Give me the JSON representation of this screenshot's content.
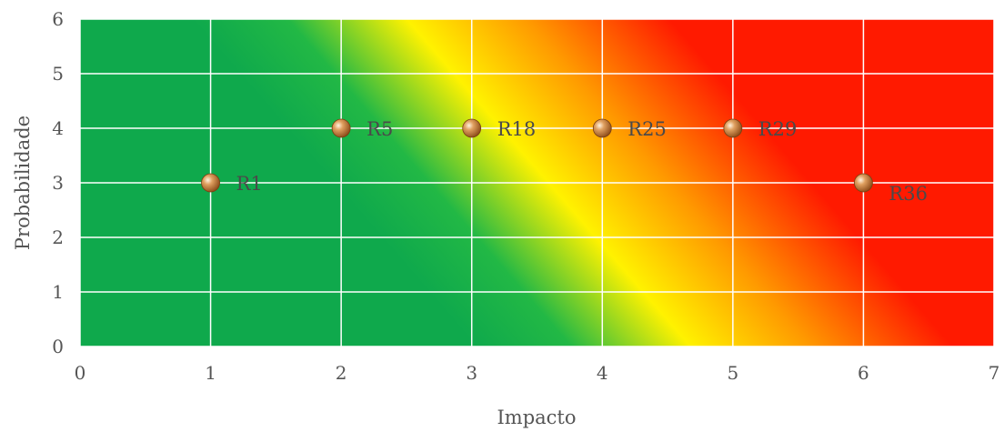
{
  "chart_data": {
    "type": "scatter",
    "xlabel": "Impacto",
    "ylabel": "Probabilidade",
    "xlim": [
      0,
      7
    ],
    "ylim": [
      0,
      6
    ],
    "x_ticks": [
      "0",
      "1",
      "2",
      "3",
      "4",
      "5",
      "6",
      "7"
    ],
    "y_ticks": [
      "0",
      "1",
      "2",
      "3",
      "4",
      "5",
      "6"
    ],
    "grid": true,
    "background": "diagonal risk gradient green to yellow to red",
    "colors": {
      "green": "#0fa94c",
      "yellow": "#fff200",
      "orange": "#ff9a00",
      "red": "#ff1a00",
      "grid": "#ffffff",
      "marker": "#c98a4a"
    },
    "points": [
      {
        "label": "R1",
        "x": 1,
        "y": 3
      },
      {
        "label": "R5",
        "x": 2,
        "y": 4
      },
      {
        "label": "R18",
        "x": 3,
        "y": 4
      },
      {
        "label": "R25",
        "x": 4,
        "y": 4
      },
      {
        "label": "R29",
        "x": 5,
        "y": 4
      },
      {
        "label": "R36",
        "x": 6,
        "y": 3
      }
    ]
  }
}
